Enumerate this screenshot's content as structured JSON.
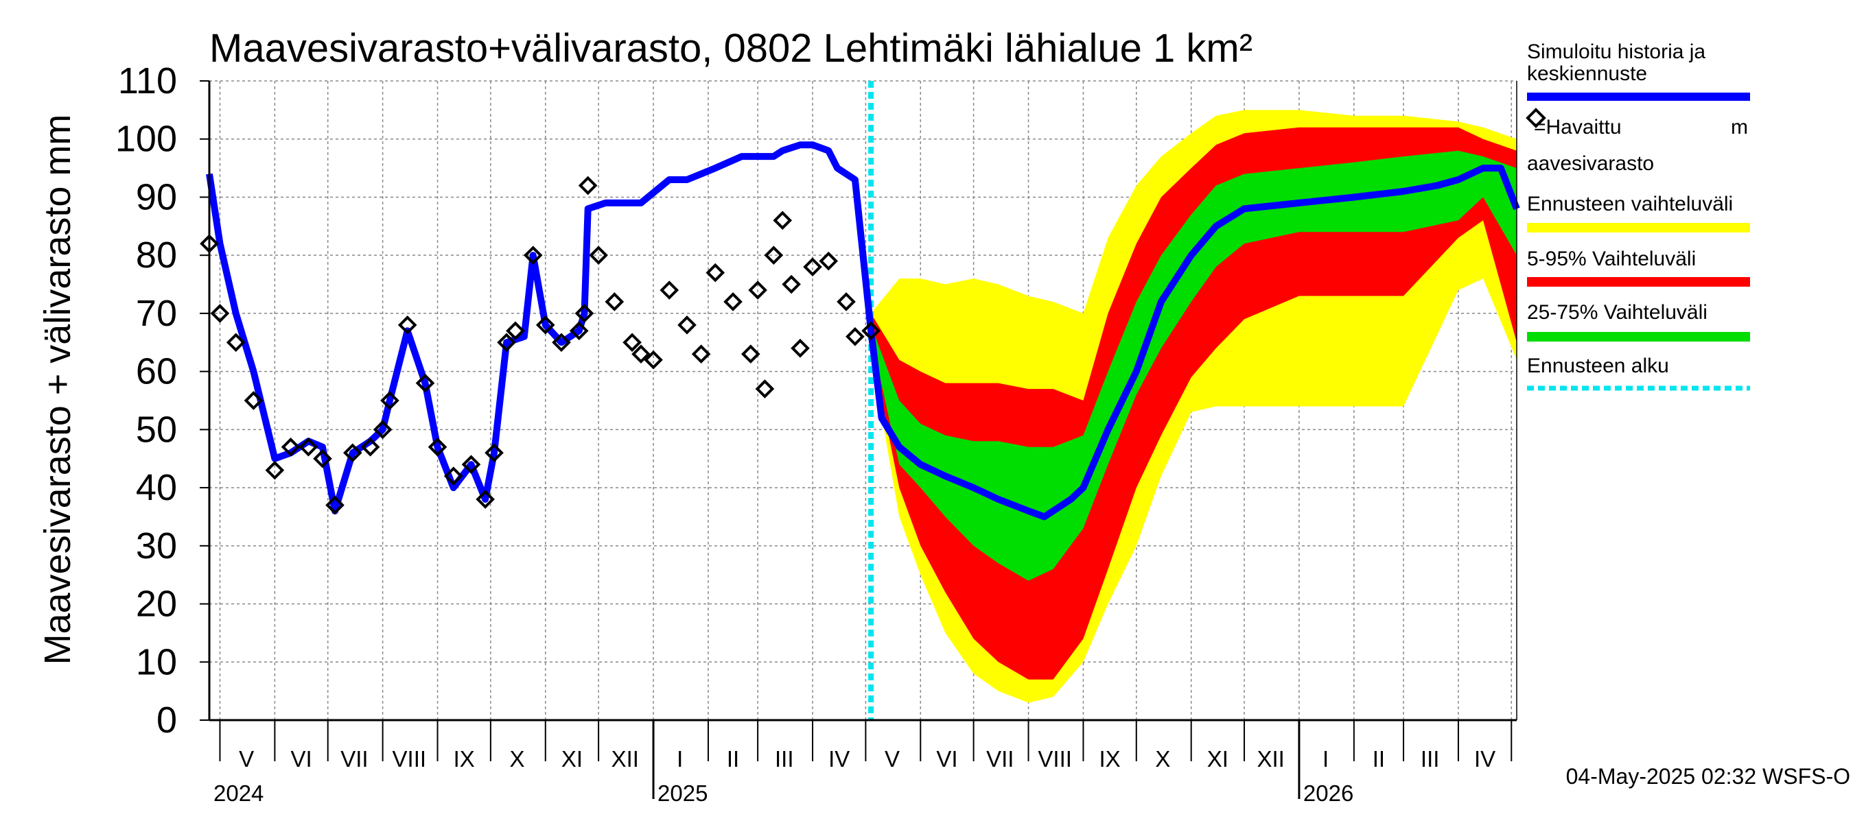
{
  "chart_data": {
    "type": "area",
    "title": "Maavesivarasto+välivarasto,  0802 Lehtimäki lähialue 1 km²",
    "ylabel": "Maavesivarasto + välivarasto mm",
    "xlabel": "",
    "ylim": [
      0,
      110
    ],
    "yticks": [
      0,
      10,
      20,
      30,
      40,
      50,
      60,
      70,
      80,
      90,
      100,
      110
    ],
    "xlim": [
      "2024-04-25",
      "2026-05-04"
    ],
    "grid": true,
    "month_labels": [
      {
        "label": "V",
        "date": "2024-05-16"
      },
      {
        "label": "VI",
        "date": "2024-06-16"
      },
      {
        "label": "VII",
        "date": "2024-07-16"
      },
      {
        "label": "VIII",
        "date": "2024-08-16"
      },
      {
        "label": "IX",
        "date": "2024-09-16"
      },
      {
        "label": "X",
        "date": "2024-10-16"
      },
      {
        "label": "XI",
        "date": "2024-11-16"
      },
      {
        "label": "XII",
        "date": "2024-12-16"
      },
      {
        "label": "I",
        "date": "2025-01-16"
      },
      {
        "label": "II",
        "date": "2025-02-15"
      },
      {
        "label": "III",
        "date": "2025-03-16"
      },
      {
        "label": "IV",
        "date": "2025-04-16"
      },
      {
        "label": "V",
        "date": "2025-05-16"
      },
      {
        "label": "VI",
        "date": "2025-06-16"
      },
      {
        "label": "VII",
        "date": "2025-07-16"
      },
      {
        "label": "VIII",
        "date": "2025-08-16"
      },
      {
        "label": "IX",
        "date": "2025-09-16"
      },
      {
        "label": "X",
        "date": "2025-10-16"
      },
      {
        "label": "XI",
        "date": "2025-11-16"
      },
      {
        "label": "XII",
        "date": "2025-12-16"
      },
      {
        "label": "I",
        "date": "2026-01-16"
      },
      {
        "label": "II",
        "date": "2026-02-15"
      },
      {
        "label": "III",
        "date": "2026-03-16"
      },
      {
        "label": "IV",
        "date": "2026-04-16"
      }
    ],
    "month_boundaries": [
      "2024-05-01",
      "2024-06-01",
      "2024-07-01",
      "2024-08-01",
      "2024-09-01",
      "2024-10-01",
      "2024-11-01",
      "2024-12-01",
      "2025-01-01",
      "2025-02-01",
      "2025-03-01",
      "2025-04-01",
      "2025-05-01",
      "2025-06-01",
      "2025-07-01",
      "2025-08-01",
      "2025-09-01",
      "2025-10-01",
      "2025-11-01",
      "2025-12-01",
      "2026-01-01",
      "2026-02-01",
      "2026-03-01",
      "2026-04-01",
      "2026-05-01"
    ],
    "year_boundaries": [
      "2025-01-01",
      "2026-01-01"
    ],
    "year_labels": [
      {
        "label": "2024",
        "date": "2024-04-25"
      },
      {
        "label": "2025",
        "date": "2025-01-01"
      },
      {
        "label": "2026",
        "date": "2026-01-01"
      }
    ],
    "forecast_start": "2025-05-04",
    "series": [
      {
        "name": "Simuloitu historia ja keskiennuste",
        "color": "#0000ff",
        "x": [
          "2024-04-25",
          "2024-05-01",
          "2024-05-10",
          "2024-05-20",
          "2024-06-01",
          "2024-06-10",
          "2024-06-20",
          "2024-06-28",
          "2024-07-05",
          "2024-07-15",
          "2024-07-25",
          "2024-08-01",
          "2024-08-05",
          "2024-08-15",
          "2024-08-25",
          "2024-09-01",
          "2024-09-10",
          "2024-09-20",
          "2024-09-28",
          "2024-10-03",
          "2024-10-10",
          "2024-10-20",
          "2024-10-25",
          "2024-11-01",
          "2024-11-10",
          "2024-11-20",
          "2024-11-23",
          "2024-11-25",
          "2024-12-05",
          "2024-12-20",
          "2024-12-25",
          "2025-01-10",
          "2025-01-20",
          "2025-01-28",
          "2025-02-05",
          "2025-02-20",
          "2025-03-01",
          "2025-03-10",
          "2025-03-15",
          "2025-03-25",
          "2025-04-01",
          "2025-04-10",
          "2025-04-15",
          "2025-04-25",
          "2025-05-04",
          "2025-05-10",
          "2025-05-20",
          "2025-06-01",
          "2025-06-15",
          "2025-07-01",
          "2025-07-15",
          "2025-08-01",
          "2025-08-10",
          "2025-08-25",
          "2025-09-01",
          "2025-09-15",
          "2025-10-01",
          "2025-10-15",
          "2025-11-01",
          "2025-11-15",
          "2025-12-01",
          "2026-01-01",
          "2026-02-01",
          "2026-03-01",
          "2026-03-20",
          "2026-04-01",
          "2026-04-15",
          "2026-04-25",
          "2026-05-04"
        ],
        "y": [
          94,
          82,
          70,
          60,
          45,
          46,
          48,
          47,
          36,
          46,
          48,
          50,
          55,
          67,
          58,
          47,
          40,
          44,
          38,
          46,
          65,
          66,
          80,
          68,
          65,
          67,
          70,
          88,
          89,
          89,
          89,
          93,
          93,
          94,
          95,
          97,
          97,
          97,
          98,
          99,
          99,
          98,
          95,
          93,
          67,
          52,
          47,
          44,
          42,
          40,
          38,
          36,
          35,
          38,
          40,
          50,
          60,
          72,
          80,
          85,
          88,
          89,
          90,
          91,
          92,
          93,
          95,
          95,
          88
        ]
      },
      {
        "name": "=Havaittu maavesivarasto",
        "color": "#000000",
        "x": [
          "2024-04-25",
          "2024-05-01",
          "2024-05-10",
          "2024-05-20",
          "2024-06-01",
          "2024-06-10",
          "2024-06-20",
          "2024-06-28",
          "2024-07-05",
          "2024-07-15",
          "2024-07-25",
          "2024-08-01",
          "2024-08-05",
          "2024-08-15",
          "2024-08-25",
          "2024-09-01",
          "2024-09-10",
          "2024-09-20",
          "2024-09-28",
          "2024-10-03",
          "2024-10-10",
          "2024-10-15",
          "2024-10-25",
          "2024-11-01",
          "2024-11-10",
          "2024-11-20",
          "2024-11-23",
          "2024-11-25",
          "2024-12-01",
          "2024-12-10",
          "2024-12-20",
          "2024-12-25",
          "2025-01-01",
          "2025-01-10",
          "2025-01-20",
          "2025-01-28",
          "2025-02-05",
          "2025-02-15",
          "2025-02-25",
          "2025-03-01",
          "2025-03-05",
          "2025-03-10",
          "2025-03-15",
          "2025-03-20",
          "2025-03-25",
          "2025-04-01",
          "2025-04-10",
          "2025-04-20",
          "2025-04-25",
          "2025-05-04"
        ],
        "y": [
          82,
          70,
          65,
          55,
          43,
          47,
          47,
          45,
          37,
          46,
          47,
          50,
          55,
          68,
          58,
          47,
          42,
          44,
          38,
          46,
          65,
          67,
          80,
          68,
          65,
          67,
          70,
          92,
          80,
          72,
          65,
          63,
          62,
          74,
          68,
          63,
          77,
          72,
          63,
          74,
          57,
          80,
          86,
          75,
          64,
          78,
          79,
          72,
          66,
          67
        ]
      }
    ],
    "bands": [
      {
        "name": "Ennusteen vaihteluväli",
        "color": "#ffff00",
        "x": [
          "2025-05-04",
          "2025-05-20",
          "2025-06-01",
          "2025-06-15",
          "2025-07-01",
          "2025-07-15",
          "2025-08-01",
          "2025-08-15",
          "2025-09-01",
          "2025-09-15",
          "2025-10-01",
          "2025-10-15",
          "2025-11-01",
          "2025-11-15",
          "2025-12-01",
          "2026-01-01",
          "2026-02-01",
          "2026-03-01",
          "2026-04-01",
          "2026-04-15",
          "2026-05-04"
        ],
        "upper": [
          70,
          76,
          76,
          75,
          76,
          75,
          73,
          72,
          70,
          83,
          92,
          97,
          101,
          104,
          105,
          105,
          104,
          104,
          103,
          102,
          100
        ],
        "lower": [
          63,
          35,
          25,
          15,
          8,
          5,
          3,
          4,
          10,
          20,
          30,
          42,
          53,
          54,
          54,
          54,
          54,
          54,
          74,
          76,
          62
        ]
      },
      {
        "name": "5-95% Vaihteluväli",
        "color": "#ff0000",
        "x": [
          "2025-05-04",
          "2025-05-20",
          "2025-06-01",
          "2025-06-15",
          "2025-07-01",
          "2025-07-15",
          "2025-08-01",
          "2025-08-15",
          "2025-09-01",
          "2025-09-15",
          "2025-10-01",
          "2025-10-15",
          "2025-11-01",
          "2025-11-15",
          "2025-12-01",
          "2026-01-01",
          "2026-02-01",
          "2026-03-01",
          "2026-04-01",
          "2026-04-15",
          "2026-05-04"
        ],
        "upper": [
          70,
          62,
          60,
          58,
          58,
          58,
          57,
          57,
          55,
          70,
          82,
          90,
          95,
          99,
          101,
          102,
          102,
          102,
          102,
          100,
          98
        ],
        "lower": [
          64,
          40,
          30,
          22,
          14,
          10,
          7,
          7,
          14,
          26,
          40,
          49,
          59,
          64,
          69,
          73,
          73,
          73,
          83,
          86,
          65
        ]
      },
      {
        "name": "25-75% Vaihteluväli",
        "color": "#00dd00",
        "x": [
          "2025-05-04",
          "2025-05-20",
          "2025-06-01",
          "2025-06-15",
          "2025-07-01",
          "2025-07-15",
          "2025-08-01",
          "2025-08-15",
          "2025-09-01",
          "2025-09-15",
          "2025-10-01",
          "2025-10-15",
          "2025-11-01",
          "2025-11-15",
          "2025-12-01",
          "2026-01-01",
          "2026-02-01",
          "2026-03-01",
          "2026-04-01",
          "2026-04-15",
          "2026-05-04"
        ],
        "upper": [
          68,
          55,
          51,
          49,
          48,
          48,
          47,
          47,
          49,
          60,
          72,
          80,
          87,
          92,
          94,
          95,
          96,
          97,
          98,
          97,
          95
        ],
        "lower": [
          66,
          44,
          40,
          35,
          30,
          27,
          24,
          26,
          33,
          44,
          56,
          64,
          72,
          78,
          82,
          84,
          84,
          84,
          86,
          90,
          80
        ]
      }
    ],
    "forecast_marker": {
      "name": "Ennusteen alku",
      "color": "#00e5ee"
    },
    "legend_position": "right",
    "legend": [
      {
        "label": "Simuloitu historia ja keskiennuste",
        "kind": "line",
        "color": "#0000ff"
      },
      {
        "label": "=Havaittu maavesivarasto",
        "kind": "diamond",
        "color": "#000000"
      },
      {
        "label": "Ennusteen vaihteluväli",
        "kind": "band",
        "color": "#ffff00"
      },
      {
        "label": "5-95% Vaihteluväli",
        "kind": "band",
        "color": "#ff0000"
      },
      {
        "label": "25-75% Vaihteluväli",
        "kind": "band",
        "color": "#00dd00"
      },
      {
        "label": "Ennusteen alku",
        "kind": "dashed",
        "color": "#00e5ee"
      }
    ],
    "legend_lines": {
      "sim1": "Simuloitu historia ja",
      "sim2": "keskiennuste",
      "obs1": "=Havaittu",
      "obs2": "m",
      "obs3": "aavesivarasto"
    },
    "footer": "04-May-2025 02:32 WSFS-O"
  }
}
